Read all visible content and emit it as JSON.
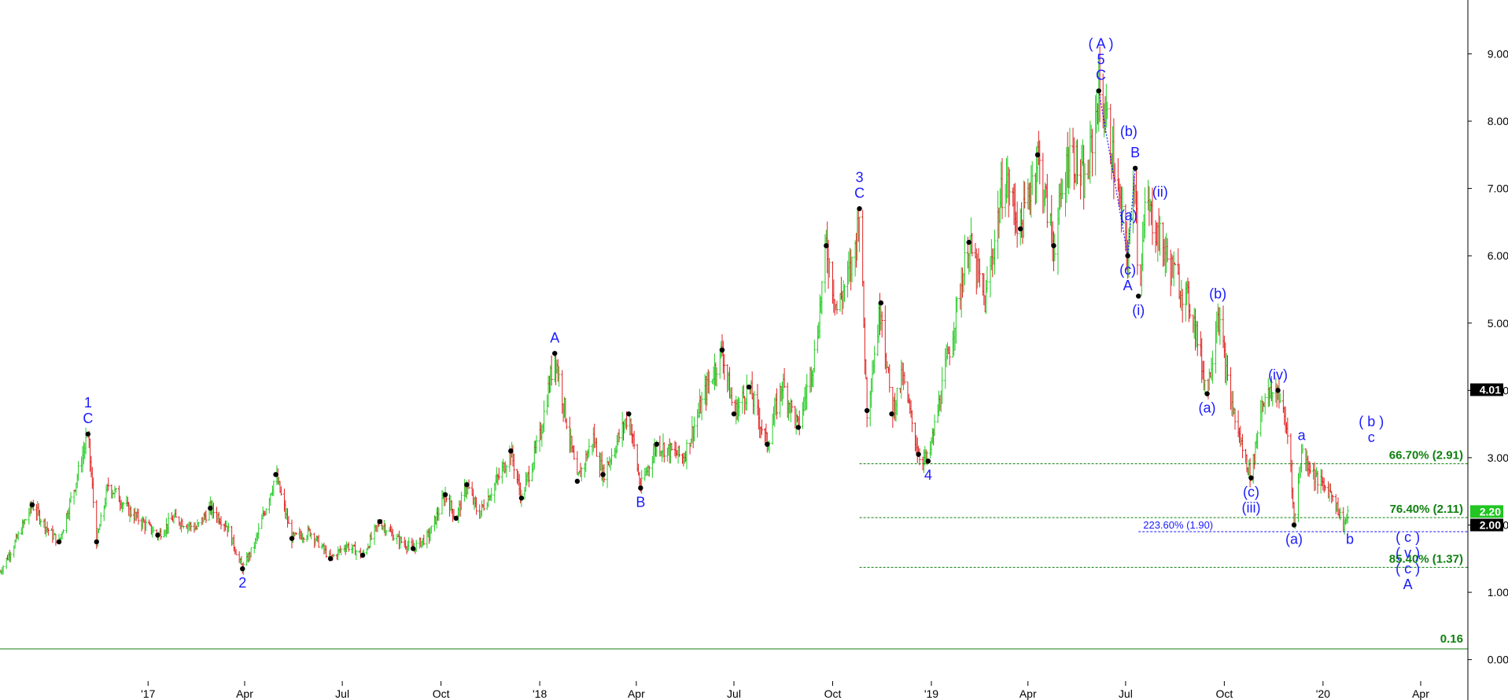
{
  "chart_data": {
    "type": "ohlc",
    "title": "",
    "xlabel": "",
    "ylabel": "",
    "ylim": [
      -0.6,
      9.8
    ],
    "xlim": [
      "2016-08-16",
      "2020-05-15"
    ],
    "grid": false,
    "y_ticks": [
      "0.00",
      "1.00",
      "2.00",
      "3.00",
      "4.00",
      "5.00",
      "6.00",
      "7.00",
      "8.00",
      "9.00"
    ],
    "x_ticks": [
      {
        "label": "'17",
        "date": "2017-01-01"
      },
      {
        "label": "Apr",
        "date": "2017-04-01"
      },
      {
        "label": "Jul",
        "date": "2017-07-01"
      },
      {
        "label": "Oct",
        "date": "2017-10-01"
      },
      {
        "label": "'18",
        "date": "2018-01-01"
      },
      {
        "label": "Apr",
        "date": "2018-04-01"
      },
      {
        "label": "Jul",
        "date": "2018-07-01"
      },
      {
        "label": "Oct",
        "date": "2018-10-01"
      },
      {
        "label": "'19",
        "date": "2019-01-01"
      },
      {
        "label": "Apr",
        "date": "2019-04-01"
      },
      {
        "label": "Jul",
        "date": "2019-07-01"
      },
      {
        "label": "Oct",
        "date": "2019-10-01"
      },
      {
        "label": "'20",
        "date": "2020-01-01"
      },
      {
        "label": "Apr",
        "date": "2020-04-01"
      }
    ],
    "price_path": [
      [
        "2016-08-16",
        1.3
      ],
      [
        "2016-09-01",
        1.8
      ],
      [
        "2016-09-15",
        2.3
      ],
      [
        "2016-10-01",
        1.9
      ],
      [
        "2016-10-10",
        1.75
      ],
      [
        "2016-10-25",
        2.6
      ],
      [
        "2016-11-06",
        3.35
      ],
      [
        "2016-11-14",
        1.75
      ],
      [
        "2016-11-25",
        2.6
      ],
      [
        "2016-12-15",
        2.2
      ],
      [
        "2017-01-10",
        1.85
      ],
      [
        "2017-01-25",
        2.1
      ],
      [
        "2017-02-15",
        1.95
      ],
      [
        "2017-02-28",
        2.25
      ],
      [
        "2017-03-15",
        2.0
      ],
      [
        "2017-03-30",
        1.35
      ],
      [
        "2017-04-10",
        1.7
      ],
      [
        "2017-04-30",
        2.75
      ],
      [
        "2017-05-15",
        1.8
      ],
      [
        "2017-06-01",
        1.9
      ],
      [
        "2017-06-20",
        1.5
      ],
      [
        "2017-07-05",
        1.7
      ],
      [
        "2017-07-20",
        1.55
      ],
      [
        "2017-08-05",
        2.05
      ],
      [
        "2017-08-20",
        1.8
      ],
      [
        "2017-09-05",
        1.65
      ],
      [
        "2017-09-20",
        1.85
      ],
      [
        "2017-10-05",
        2.45
      ],
      [
        "2017-10-15",
        2.1
      ],
      [
        "2017-10-25",
        2.6
      ],
      [
        "2017-11-05",
        2.15
      ],
      [
        "2017-11-25",
        2.75
      ],
      [
        "2017-12-05",
        3.1
      ],
      [
        "2017-12-15",
        2.4
      ],
      [
        "2018-01-01",
        3.3
      ],
      [
        "2018-01-15",
        4.55
      ],
      [
        "2018-02-05",
        2.65
      ],
      [
        "2018-02-20",
        3.3
      ],
      [
        "2018-03-01",
        2.75
      ],
      [
        "2018-03-25",
        3.65
      ],
      [
        "2018-04-05",
        2.55
      ],
      [
        "2018-04-20",
        3.2
      ],
      [
        "2018-05-15",
        3.0
      ],
      [
        "2018-06-05",
        4.0
      ],
      [
        "2018-06-20",
        4.6
      ],
      [
        "2018-07-01",
        3.65
      ],
      [
        "2018-07-15",
        4.05
      ],
      [
        "2018-08-01",
        3.2
      ],
      [
        "2018-08-15",
        4.1
      ],
      [
        "2018-08-30",
        3.45
      ],
      [
        "2018-09-15",
        4.6
      ],
      [
        "2018-09-25",
        6.15
      ],
      [
        "2018-10-05",
        5.2
      ],
      [
        "2018-10-20",
        5.9
      ],
      [
        "2018-10-26",
        6.7
      ],
      [
        "2018-11-02",
        3.7
      ],
      [
        "2018-11-15",
        5.3
      ],
      [
        "2018-11-25",
        3.65
      ],
      [
        "2018-12-05",
        4.2
      ],
      [
        "2018-12-20",
        3.05
      ],
      [
        "2018-12-29",
        2.95
      ],
      [
        "2019-01-20",
        4.8
      ],
      [
        "2019-02-05",
        6.2
      ],
      [
        "2019-02-20",
        5.3
      ],
      [
        "2019-03-10",
        7.2
      ],
      [
        "2019-03-25",
        6.4
      ],
      [
        "2019-04-10",
        7.5
      ],
      [
        "2019-04-25",
        6.15
      ],
      [
        "2019-05-10",
        7.6
      ],
      [
        "2019-05-25",
        7.0
      ],
      [
        "2019-06-06",
        8.45
      ],
      [
        "2019-06-15",
        7.9
      ],
      [
        "2019-06-25",
        6.8
      ],
      [
        "2019-07-03",
        6.0
      ],
      [
        "2019-07-10",
        7.3
      ],
      [
        "2019-07-13",
        5.4
      ],
      [
        "2019-07-20",
        6.8
      ],
      [
        "2019-08-10",
        5.9
      ],
      [
        "2019-09-01",
        5.2
      ],
      [
        "2019-09-15",
        3.95
      ],
      [
        "2019-09-25",
        5.2
      ],
      [
        "2019-10-05",
        4.0
      ],
      [
        "2019-10-15",
        3.3
      ],
      [
        "2019-10-26",
        2.7
      ],
      [
        "2019-11-05",
        3.85
      ],
      [
        "2019-11-20",
        4.0
      ],
      [
        "2019-12-01",
        3.2
      ],
      [
        "2019-12-05",
        2.0
      ],
      [
        "2019-12-12",
        3.1
      ],
      [
        "2019-12-25",
        2.7
      ],
      [
        "2020-01-10",
        2.45
      ],
      [
        "2020-01-20",
        2.0
      ],
      [
        "2020-01-26",
        2.2
      ]
    ],
    "pivots": [
      [
        "2016-09-15",
        2.3
      ],
      [
        "2016-10-10",
        1.75
      ],
      [
        "2016-11-06",
        3.35
      ],
      [
        "2016-11-14",
        1.75
      ],
      [
        "2017-01-10",
        1.85
      ],
      [
        "2017-02-28",
        2.25
      ],
      [
        "2017-03-30",
        1.35
      ],
      [
        "2017-04-30",
        2.75
      ],
      [
        "2017-05-15",
        1.8
      ],
      [
        "2017-06-20",
        1.5
      ],
      [
        "2017-07-20",
        1.55
      ],
      [
        "2017-08-05",
        2.05
      ],
      [
        "2017-09-05",
        1.65
      ],
      [
        "2017-10-05",
        2.45
      ],
      [
        "2017-10-15",
        2.1
      ],
      [
        "2017-10-25",
        2.6
      ],
      [
        "2017-12-05",
        3.1
      ],
      [
        "2017-12-15",
        2.4
      ],
      [
        "2018-01-15",
        4.55
      ],
      [
        "2018-02-05",
        2.65
      ],
      [
        "2018-03-01",
        2.75
      ],
      [
        "2018-03-25",
        3.65
      ],
      [
        "2018-04-05",
        2.55
      ],
      [
        "2018-04-20",
        3.2
      ],
      [
        "2018-06-20",
        4.6
      ],
      [
        "2018-07-01",
        3.65
      ],
      [
        "2018-07-15",
        4.05
      ],
      [
        "2018-08-01",
        3.2
      ],
      [
        "2018-08-30",
        3.45
      ],
      [
        "2018-09-25",
        6.15
      ],
      [
        "2018-10-26",
        6.7
      ],
      [
        "2018-11-02",
        3.7
      ],
      [
        "2018-11-15",
        5.3
      ],
      [
        "2018-11-25",
        3.65
      ],
      [
        "2018-12-20",
        3.05
      ],
      [
        "2018-12-29",
        2.95
      ],
      [
        "2019-02-05",
        6.2
      ],
      [
        "2019-03-25",
        6.4
      ],
      [
        "2019-04-10",
        7.5
      ],
      [
        "2019-04-25",
        6.15
      ],
      [
        "2019-06-06",
        8.45
      ],
      [
        "2019-07-03",
        6.0
      ],
      [
        "2019-07-10",
        7.3
      ],
      [
        "2019-07-13",
        5.4
      ],
      [
        "2019-09-15",
        3.95
      ],
      [
        "2019-10-26",
        2.7
      ],
      [
        "2019-11-20",
        4.0
      ],
      [
        "2019-12-05",
        2.0
      ]
    ],
    "dotted_wave_path": [
      [
        "2019-06-06",
        8.45
      ],
      [
        "2019-07-03",
        6.0
      ],
      [
        "2019-07-10",
        7.3
      ]
    ],
    "wave_labels": [
      {
        "lines": [
          "1",
          "C"
        ],
        "date": "2016-11-06",
        "value": 3.35,
        "pos": "above"
      },
      {
        "lines": [
          "2"
        ],
        "date": "2017-03-30",
        "value": 1.35,
        "pos": "below"
      },
      {
        "lines": [
          "A"
        ],
        "date": "2018-01-15",
        "value": 4.55,
        "pos": "above"
      },
      {
        "lines": [
          "B"
        ],
        "date": "2018-04-05",
        "value": 2.55,
        "pos": "below"
      },
      {
        "lines": [
          "3",
          "C"
        ],
        "date": "2018-10-26",
        "value": 6.7,
        "pos": "above"
      },
      {
        "lines": [
          "4"
        ],
        "date": "2018-12-29",
        "value": 2.95,
        "pos": "below"
      },
      {
        "lines": [
          "( A )",
          "5",
          "C"
        ],
        "date": "2019-06-08",
        "value": 8.45,
        "pos": "above"
      },
      {
        "lines": [
          "(b)"
        ],
        "date": "2019-06-20",
        "value": 7.85,
        "pos": "right"
      },
      {
        "lines": [
          "(a)"
        ],
        "date": "2019-06-20",
        "value": 6.6,
        "pos": "right"
      },
      {
        "lines": [
          "(c)",
          "A"
        ],
        "date": "2019-07-03",
        "value": 6.0,
        "pos": "below"
      },
      {
        "lines": [
          "B"
        ],
        "date": "2019-07-10",
        "value": 7.3,
        "pos": "above"
      },
      {
        "lines": [
          "(ii)"
        ],
        "date": "2019-07-20",
        "value": 6.95,
        "pos": "right"
      },
      {
        "lines": [
          "(i)"
        ],
        "date": "2019-07-13",
        "value": 5.4,
        "pos": "below"
      },
      {
        "lines": [
          "(b)"
        ],
        "date": "2019-09-25",
        "value": 5.2,
        "pos": "above"
      },
      {
        "lines": [
          "(a)"
        ],
        "date": "2019-09-15",
        "value": 3.95,
        "pos": "below"
      },
      {
        "lines": [
          "(iv)"
        ],
        "date": "2019-11-20",
        "value": 4.0,
        "pos": "above"
      },
      {
        "lines": [
          "(c)",
          "(iii)"
        ],
        "date": "2019-10-26",
        "value": 2.7,
        "pos": "below"
      },
      {
        "lines": [
          "a"
        ],
        "date": "2019-12-12",
        "value": 3.1,
        "pos": "above"
      },
      {
        "lines": [
          "(a)"
        ],
        "date": "2019-12-05",
        "value": 2.0,
        "pos": "below"
      },
      {
        "lines": [
          "b"
        ],
        "date": "2020-01-26",
        "value": 2.0,
        "pos": "below"
      },
      {
        "lines": [
          "( b )",
          "c"
        ],
        "date": "2020-02-15",
        "value": 3.35,
        "pos": "projection"
      },
      {
        "lines": [
          "( c )",
          "( v )",
          "( c )",
          "A"
        ],
        "date": "2020-03-20",
        "value": 1.4,
        "pos": "projection"
      }
    ],
    "fib_levels": [
      {
        "label": "66.70% (2.91)",
        "value": 2.91,
        "start": "2018-10-26",
        "color": "#108010"
      },
      {
        "label": "76.40% (2.11)",
        "value": 2.11,
        "start": "2018-10-26",
        "color": "#108010"
      },
      {
        "label": "223.60% (1.90)",
        "value": 1.9,
        "start": "2019-07-13",
        "color": "#1a1aff"
      },
      {
        "label": "85.40% (1.37)",
        "value": 1.37,
        "start": "2018-10-26",
        "color": "#108010"
      }
    ],
    "hline": {
      "label": "0.16",
      "value": 0.16,
      "color": "#108010"
    },
    "price_tags": [
      {
        "label": "4.01",
        "value": 4.01,
        "bg": "#000000",
        "fg": "#ffffff"
      },
      {
        "label": "2.20",
        "value": 2.2,
        "bg": "#22c522",
        "fg": "#ffffff"
      },
      {
        "label": "2.00",
        "value": 2.0,
        "bg": "#000000",
        "fg": "#ffffff"
      }
    ],
    "colors": {
      "up": "#22cc22",
      "down": "#e02020",
      "wave": "#1a1aff",
      "fib": "#108010"
    }
  }
}
